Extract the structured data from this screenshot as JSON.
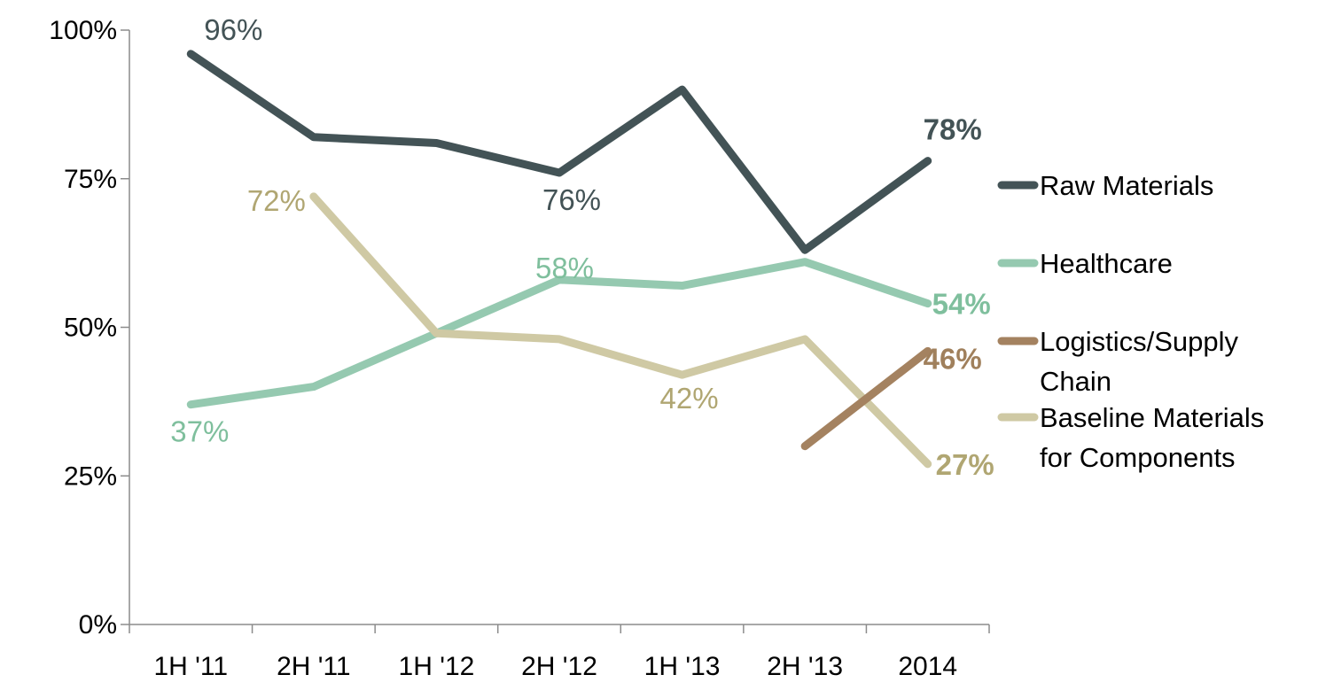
{
  "chart_data": {
    "type": "line",
    "categories": [
      "1H '11",
      "2H '11",
      "1H '12",
      "2H '12",
      "1H '13",
      "2H '13",
      "2014"
    ],
    "ylim": [
      0,
      100
    ],
    "yticks": [
      0,
      25,
      50,
      75,
      100
    ],
    "ytick_labels": [
      "0%",
      "25%",
      "50%",
      "75%",
      "100%"
    ],
    "grid": false,
    "legend_position": "right",
    "series": [
      {
        "name": "Raw Materials",
        "legend_lines": [
          "Raw Materials"
        ],
        "color": "#435356",
        "values": [
          96,
          82,
          81,
          76,
          90,
          63,
          78
        ],
        "labels": [
          {
            "index": 0,
            "text": "96%",
            "bold": false
          },
          {
            "index": 3,
            "text": "76%",
            "bold": false
          },
          {
            "index": 6,
            "text": "78%",
            "bold": true
          }
        ]
      },
      {
        "name": "Healthcare",
        "legend_lines": [
          "Healthcare"
        ],
        "color": "#95c9b0",
        "label_color": "#7fbf9d",
        "values": [
          37,
          40,
          49,
          58,
          57,
          61,
          54
        ],
        "labels": [
          {
            "index": 0,
            "text": "37%",
            "bold": false
          },
          {
            "index": 3,
            "text": "58%",
            "bold": false
          },
          {
            "index": 6,
            "text": "54%",
            "bold": true
          }
        ]
      },
      {
        "name": "Logistics/Supply Chain",
        "legend_lines": [
          "Logistics/Supply",
          "Chain"
        ],
        "color": "#a48260",
        "label_color": "#a0805c",
        "values": [
          null,
          null,
          null,
          null,
          null,
          30,
          46
        ],
        "labels": [
          {
            "index": 6,
            "text": "46%",
            "bold": true
          }
        ]
      },
      {
        "name": "Baseline Materials for Components",
        "legend_lines": [
          "Baseline Materials",
          "for Components"
        ],
        "color": "#cfc9a4",
        "label_color": "#b0a672",
        "values": [
          null,
          72,
          49,
          48,
          42,
          48,
          27
        ],
        "labels": [
          {
            "index": 1,
            "text": "72%",
            "bold": false
          },
          {
            "index": 4,
            "text": "42%",
            "bold": false
          },
          {
            "index": 6,
            "text": "27%",
            "bold": true
          }
        ]
      }
    ]
  }
}
